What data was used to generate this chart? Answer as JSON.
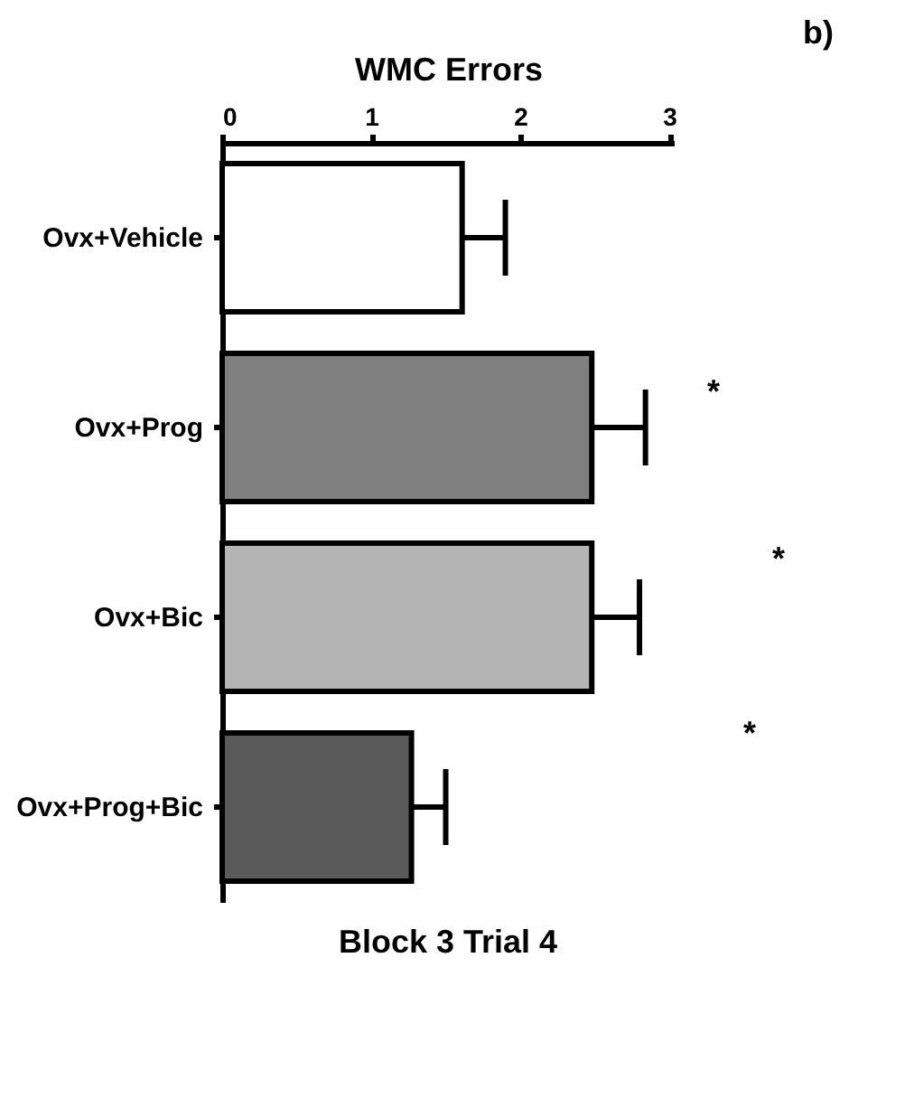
{
  "chart_data": {
    "type": "bar",
    "orientation": "horizontal",
    "title": "Block 3 Trial 4",
    "xlabel": "WMC Errors",
    "categories": [
      "Ovx+Vehicle",
      "Ovx+Prog",
      "Ovx+Bic",
      "Ovx+Prog+Bic"
    ],
    "values": [
      1.61,
      2.48,
      2.48,
      1.27
    ],
    "errors": [
      0.29,
      0.36,
      0.32,
      0.23
    ],
    "colors": [
      "#ffffff",
      "#808080",
      "#b4b4b4",
      "#5a5a5a"
    ],
    "xlim": [
      0,
      3.03
    ],
    "xticks": [
      0,
      1,
      2,
      3
    ],
    "grid": false,
    "annotations": [
      "*",
      "*",
      "*",
      "b)"
    ]
  }
}
